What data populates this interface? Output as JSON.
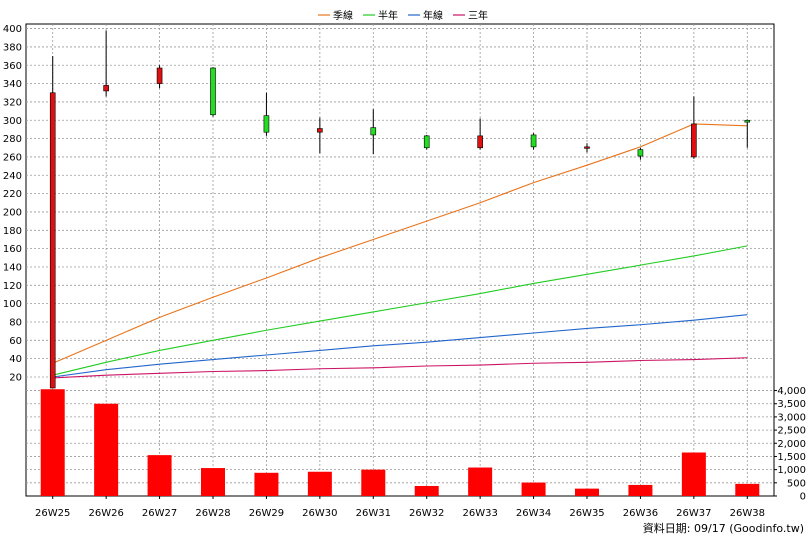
{
  "legend": [
    {
      "label": "季線",
      "color": "#e8741c"
    },
    {
      "label": "半年",
      "color": "#22cc22"
    },
    {
      "label": "年線",
      "color": "#2266cc"
    },
    {
      "label": "三年",
      "color": "#cc1466"
    }
  ],
  "footer": "資料日期: 09/17  (Goodinfo.tw)",
  "chart_data": [
    {
      "type": "candlestick",
      "categories": [
        "26W25",
        "26W26",
        "26W27",
        "26W28",
        "26W29",
        "26W30",
        "26W31",
        "26W32",
        "26W33",
        "26W34",
        "26W35",
        "26W36",
        "26W37",
        "26W38"
      ],
      "y_ticks": [
        20,
        40,
        60,
        80,
        100,
        120,
        140,
        160,
        180,
        200,
        220,
        240,
        260,
        280,
        300,
        320,
        340,
        360,
        380,
        400
      ],
      "ylim": [
        20,
        405
      ],
      "grid": true,
      "legend_position": "top",
      "ohlc": [
        {
          "open": 330,
          "high": 370,
          "low": 8,
          "close": 8
        },
        {
          "open": 338,
          "high": 398,
          "low": 326,
          "close": 332
        },
        {
          "open": 357,
          "high": 360,
          "low": 335,
          "close": 340
        },
        {
          "open": 306,
          "high": 358,
          "low": 304,
          "close": 357
        },
        {
          "open": 287,
          "high": 330,
          "low": 283,
          "close": 305
        },
        {
          "open": 291,
          "high": 303,
          "low": 264,
          "close": 287
        },
        {
          "open": 284,
          "high": 312,
          "low": 263,
          "close": 292
        },
        {
          "open": 270,
          "high": 284,
          "low": 268,
          "close": 283
        },
        {
          "open": 283,
          "high": 302,
          "low": 268,
          "close": 270
        },
        {
          "open": 271,
          "high": 286,
          "low": 268,
          "close": 284
        },
        {
          "open": 271,
          "high": 275,
          "low": 265,
          "close": 270
        },
        {
          "open": 261,
          "high": 270,
          "low": 257,
          "close": 268
        },
        {
          "open": 296,
          "high": 326,
          "low": 258,
          "close": 260
        },
        {
          "open": 298,
          "high": 301,
          "low": 270,
          "close": 300
        }
      ],
      "moving_averages": [
        {
          "name": "季線",
          "color": "#e8741c",
          "values": [
            35,
            60,
            85,
            107,
            128,
            150,
            170,
            190,
            210,
            232,
            251,
            271,
            296,
            294
          ]
        },
        {
          "name": "半年",
          "color": "#22cc22",
          "values": [
            22,
            36,
            49,
            60,
            71,
            81,
            91,
            101,
            111,
            122,
            132,
            142,
            152,
            163
          ]
        },
        {
          "name": "年線",
          "color": "#2266cc",
          "values": [
            20,
            28,
            34,
            39,
            44,
            49,
            54,
            58,
            63,
            68,
            73,
            77,
            82,
            88
          ]
        },
        {
          "name": "三年",
          "color": "#cc1466",
          "values": [
            19,
            22,
            24,
            26,
            27,
            29,
            30,
            32,
            33,
            35,
            36,
            38,
            39,
            41
          ]
        }
      ]
    },
    {
      "type": "bar",
      "categories": [
        "26W25",
        "26W26",
        "26W27",
        "26W28",
        "26W29",
        "26W30",
        "26W31",
        "26W32",
        "26W33",
        "26W34",
        "26W35",
        "26W36",
        "26W37",
        "26W38"
      ],
      "values": [
        4050,
        3500,
        1550,
        1060,
        880,
        920,
        1000,
        380,
        1080,
        510,
        280,
        420,
        1650,
        460
      ],
      "y_ticks": [
        0,
        500,
        1000,
        1500,
        2000,
        2500,
        3000,
        3500,
        4000
      ],
      "y_tick_labels": [
        "0",
        "500",
        "1,000",
        "1,500",
        "2,000",
        "2,500",
        "3,000",
        "3,500",
        "4,000"
      ],
      "ylim": [
        0,
        4400
      ],
      "color": "#ff0000",
      "grid": true
    }
  ]
}
